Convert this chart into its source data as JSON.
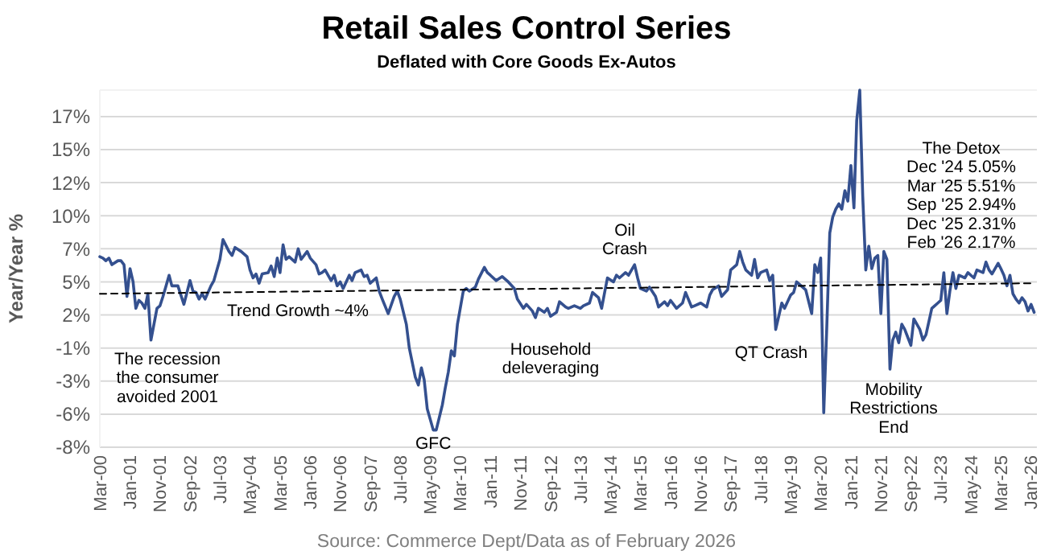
{
  "chart_data": {
    "type": "line",
    "title": "Retail Sales Control Series",
    "subtitle": "Deflated with Core Goods Ex-Autos",
    "ylabel": "Year/Year %",
    "x": [
      "2000-03",
      "2000-04",
      "2000-05",
      "2000-06",
      "2000-07",
      "2000-09",
      "2000-10",
      "2000-11",
      "2000-12",
      "2001-01",
      "2001-02",
      "2001-03",
      "2001-04",
      "2001-05",
      "2001-06",
      "2001-07",
      "2001-08",
      "2001-10",
      "2001-11",
      "2001-12",
      "2002-01",
      "2002-02",
      "2002-03",
      "2002-05",
      "2002-07",
      "2002-09",
      "2002-10",
      "2002-11",
      "2002-12",
      "2003-01",
      "2003-02",
      "2003-04",
      "2003-05",
      "2003-07",
      "2003-08",
      "2003-10",
      "2003-11",
      "2003-12",
      "2004-02",
      "2004-04",
      "2004-05",
      "2004-06",
      "2004-07",
      "2004-08",
      "2004-09",
      "2004-11",
      "2004-12",
      "2005-01",
      "2005-02",
      "2005-03",
      "2005-04",
      "2005-05",
      "2005-06",
      "2005-08",
      "2005-09",
      "2005-10",
      "2005-12",
      "2006-01",
      "2006-03",
      "2006-04",
      "2006-05",
      "2006-06",
      "2006-08",
      "2006-09",
      "2006-10",
      "2006-11",
      "2006-12",
      "2007-02",
      "2007-03",
      "2007-04",
      "2007-06",
      "2007-07",
      "2007-08",
      "2007-09",
      "2007-11",
      "2007-12",
      "2008-01",
      "2008-03",
      "2008-05",
      "2008-06",
      "2008-07",
      "2008-09",
      "2008-10",
      "2008-12",
      "2009-01",
      "2009-02",
      "2009-03",
      "2009-04",
      "2009-06",
      "2009-07",
      "2009-09",
      "2009-10",
      "2009-11",
      "2009-12",
      "2010-01",
      "2010-02",
      "2010-04",
      "2010-05",
      "2010-06",
      "2010-08",
      "2010-09",
      "2010-11",
      "2010-12",
      "2011-01",
      "2011-03",
      "2011-05",
      "2011-07",
      "2011-09",
      "2011-10",
      "2011-12",
      "2012-01",
      "2012-03",
      "2012-04",
      "2012-05",
      "2012-07",
      "2012-08",
      "2012-09",
      "2012-11",
      "2012-12",
      "2013-02",
      "2013-03",
      "2013-05",
      "2013-07",
      "2013-08",
      "2013-10",
      "2013-11",
      "2014-01",
      "2014-02",
      "2014-03",
      "2014-04",
      "2014-06",
      "2014-07",
      "2014-08",
      "2014-10",
      "2014-11",
      "2015-01",
      "2015-02",
      "2015-03",
      "2015-05",
      "2015-06",
      "2015-08",
      "2015-09",
      "2015-11",
      "2015-12",
      "2016-01",
      "2016-03",
      "2016-05",
      "2016-06",
      "2016-08",
      "2016-09",
      "2016-11",
      "2017-01",
      "2017-02",
      "2017-03",
      "2017-05",
      "2017-06",
      "2017-08",
      "2017-09",
      "2017-11",
      "2017-12",
      "2018-01",
      "2018-02",
      "2018-04",
      "2018-05",
      "2018-06",
      "2018-07",
      "2018-09",
      "2018-10",
      "2018-11",
      "2018-12",
      "2019-02",
      "2019-03",
      "2019-05",
      "2019-06",
      "2019-07",
      "2019-09",
      "2019-10",
      "2019-12",
      "2020-01",
      "2020-02",
      "2020-03",
      "2020-04",
      "2020-05",
      "2020-06",
      "2020-07",
      "2020-08",
      "2020-09",
      "2020-10",
      "2020-11",
      "2020-12",
      "2021-01",
      "2021-02",
      "2021-03",
      "2021-04",
      "2021-05",
      "2021-06",
      "2021-07",
      "2021-08",
      "2021-09",
      "2021-10",
      "2021-11",
      "2021-12",
      "2022-01",
      "2022-02",
      "2022-03",
      "2022-04",
      "2022-05",
      "2022-06",
      "2022-07",
      "2022-08",
      "2022-09",
      "2022-10",
      "2022-11",
      "2022-12",
      "2023-01",
      "2023-02",
      "2023-04",
      "2023-05",
      "2023-06",
      "2023-07",
      "2023-08",
      "2023-09",
      "2023-10",
      "2023-11",
      "2023-12",
      "2024-01",
      "2024-03",
      "2024-04",
      "2024-05",
      "2024-06",
      "2024-07",
      "2024-09",
      "2024-10",
      "2024-11",
      "2024-12",
      "2025-02",
      "2025-03",
      "2025-04",
      "2025-05",
      "2025-06",
      "2025-07",
      "2025-08",
      "2025-09",
      "2025-10",
      "2025-11",
      "2025-12",
      "2026-01",
      "2026-02"
    ],
    "series": [
      {
        "color": "#34508f",
        "values": [
          6.4,
          6.3,
          6.1,
          6.3,
          5.8,
          6.1,
          6.1,
          5.8,
          3.4,
          5.5,
          4.5,
          2.5,
          3.1,
          2.9,
          2.5,
          3.6,
          0.1,
          2.5,
          2.7,
          3.4,
          4.2,
          5.0,
          4.2,
          4.2,
          2.8,
          4.6,
          3.8,
          3.7,
          3.2,
          3.6,
          3.2,
          4.2,
          4.6,
          6.2,
          7.7,
          6.8,
          6.5,
          7.1,
          6.8,
          6.4,
          5.4,
          4.8,
          5.1,
          4.4,
          5.1,
          5.2,
          5.7,
          4.9,
          6.3,
          5.2,
          7.3,
          6.2,
          6.4,
          6.0,
          7.0,
          6.2,
          6.8,
          6.3,
          5.8,
          5.1,
          5.2,
          5.4,
          4.6,
          5.0,
          4.2,
          4.5,
          4.0,
          5.0,
          4.6,
          5.2,
          5.4,
          4.9,
          5.0,
          4.4,
          4.8,
          3.8,
          3.2,
          2.1,
          3.4,
          3.8,
          3.2,
          1.3,
          -0.5,
          -2.7,
          -3.3,
          -2.0,
          -2.9,
          -5.1,
          -6.7,
          -6.7,
          -4.8,
          -3.5,
          -2.3,
          -0.7,
          -1.1,
          1.3,
          3.8,
          4.0,
          3.8,
          4.1,
          4.7,
          5.6,
          5.2,
          5.0,
          4.6,
          4.9,
          4.5,
          4.0,
          3.2,
          2.5,
          2.8,
          2.3,
          1.8,
          2.5,
          2.2,
          2.5,
          1.9,
          2.2,
          3.0,
          2.6,
          2.5,
          2.7,
          2.5,
          2.7,
          2.9,
          3.7,
          3.3,
          2.5,
          3.6,
          4.8,
          4.5,
          5.0,
          4.8,
          5.2,
          5.0,
          5.8,
          4.8,
          4.0,
          3.8,
          4.1,
          3.4,
          2.6,
          3.0,
          2.7,
          3.1,
          2.5,
          2.9,
          3.7,
          2.6,
          2.7,
          2.9,
          2.6,
          3.5,
          3.9,
          4.2,
          3.4,
          3.9,
          5.4,
          5.8,
          6.8,
          6.0,
          5.4,
          5.0,
          6.2,
          4.8,
          5.2,
          5.4,
          4.6,
          5.0,
          0.9,
          2.9,
          2.5,
          3.5,
          3.7,
          4.5,
          4.1,
          3.9,
          2.1,
          5.8,
          5.2,
          6.3,
          -5.4,
          0.9,
          8.2,
          9.4,
          10.0,
          10.4,
          10.0,
          11.4,
          10.6,
          13.3,
          10.1,
          16.7,
          19,
          11.0,
          5.4,
          7.2,
          5.5,
          6.3,
          6.5,
          2.1,
          6.8,
          6.2,
          -2.1,
          0.1,
          0.7,
          -0.1,
          1.3,
          0.9,
          0.3,
          -0.3,
          1.7,
          1.3,
          0.9,
          0.1,
          0.5,
          2.5,
          2.7,
          2.9,
          3.1,
          5.2,
          2.1,
          3.8,
          5.2,
          4.0,
          5.0,
          4.8,
          5.2,
          5.0,
          4.8,
          5.4,
          5.2,
          6.0,
          5.4,
          5.1,
          5.9,
          5.5,
          5.0,
          4.2,
          5.0,
          3.6,
          3.2,
          2.9,
          3.3,
          3.0,
          2.3,
          2.8,
          2.2
        ]
      },
      {
        "type": "line",
        "color": "#000000",
        "line_style": "dashed",
        "x": [
          "2000-03",
          "2026-02"
        ],
        "values": [
          3.6,
          4.4
        ]
      }
    ],
    "xlim": [
      "2000-03",
      "2026-03"
    ],
    "xticks": [
      {
        "value": "2000-03",
        "label": "Mar-00"
      },
      {
        "value": "2001-01",
        "label": "Jan-01"
      },
      {
        "value": "2001-11",
        "label": "Nov-01"
      },
      {
        "value": "2002-09",
        "label": "Sep-02"
      },
      {
        "value": "2003-07",
        "label": "Jul-03"
      },
      {
        "value": "2004-05",
        "label": "May-04"
      },
      {
        "value": "2005-03",
        "label": "Mar-05"
      },
      {
        "value": "2006-01",
        "label": "Jan-06"
      },
      {
        "value": "2006-11",
        "label": "Nov-06"
      },
      {
        "value": "2007-09",
        "label": "Sep-07"
      },
      {
        "value": "2008-07",
        "label": "Jul-08"
      },
      {
        "value": "2009-05",
        "label": "May-09"
      },
      {
        "value": "2010-03",
        "label": "Mar-10"
      },
      {
        "value": "2011-01",
        "label": "Jan-11"
      },
      {
        "value": "2011-11",
        "label": "Nov-11"
      },
      {
        "value": "2012-09",
        "label": "Sep-12"
      },
      {
        "value": "2013-07",
        "label": "Jul-13"
      },
      {
        "value": "2014-05",
        "label": "May-14"
      },
      {
        "value": "2015-03",
        "label": "Mar-15"
      },
      {
        "value": "2016-01",
        "label": "Jan-16"
      },
      {
        "value": "2016-11",
        "label": "Nov-16"
      },
      {
        "value": "2017-09",
        "label": "Sep-17"
      },
      {
        "value": "2018-07",
        "label": "Jul-18"
      },
      {
        "value": "2019-05",
        "label": "May-19"
      },
      {
        "value": "2020-03",
        "label": "Mar-20"
      },
      {
        "value": "2021-01",
        "label": "Jan-21"
      },
      {
        "value": "2021-11",
        "label": "Nov-21"
      },
      {
        "value": "2022-09",
        "label": "Sep-22"
      },
      {
        "value": "2023-07",
        "label": "Jul-23"
      },
      {
        "value": "2024-05",
        "label": "May-24"
      },
      {
        "value": "2025-03",
        "label": "Mar-25"
      },
      {
        "value": "2026-01",
        "label": "Jan-26"
      }
    ],
    "ylim": [
      -8,
      19
    ],
    "yticks": [
      {
        "value": -8,
        "label": "-8%"
      },
      {
        "value": -5.5,
        "label": "-6%"
      },
      {
        "value": -3,
        "label": "-3%"
      },
      {
        "value": -0.5,
        "label": "-1%"
      },
      {
        "value": 2,
        "label": "2%"
      },
      {
        "value": 4.5,
        "label": "5%"
      },
      {
        "value": 7,
        "label": "7%"
      },
      {
        "value": 9.5,
        "label": "10%"
      },
      {
        "value": 12,
        "label": "12%"
      },
      {
        "value": 14.5,
        "label": "15%"
      },
      {
        "value": 17,
        "label": "17%"
      }
    ],
    "grid": "y",
    "marker": "none",
    "line_style": "solid",
    "annotations": [
      "The recession\nthe consumer\navoided 2001",
      "Trend Growth ~4%",
      {
        "text": "GFC",
        "x": "2009-06",
        "y": -7.1
      },
      "Household\ndeleveraging",
      "Oil\nCrash",
      "QT Crash",
      "Mobility\nRestrictions\nEnd",
      "The Detox\nDec '24 5.05%\nMar '25 5.51%\nSep '25 2.94%\nDec '25 2.31%\nFeb '26 2.17%",
      "Source: Commerce Dept/Data as of February 2026"
    ]
  }
}
